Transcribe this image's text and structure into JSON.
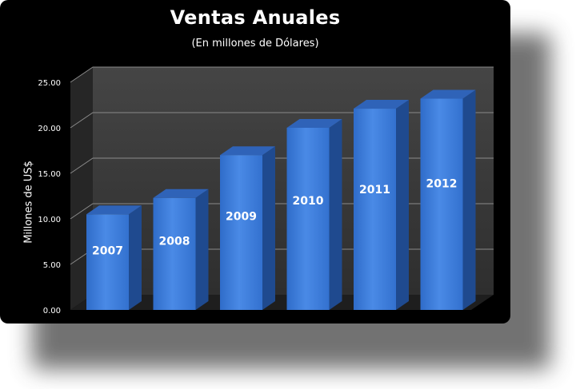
{
  "chart_data": {
    "type": "bar",
    "title": "Ventas Anuales",
    "subtitle": "(En millones de Dólares)",
    "xlabel": "",
    "ylabel": "Millones de US$",
    "categories": [
      "2007",
      "2008",
      "2009",
      "2010",
      "2011",
      "2012"
    ],
    "values": [
      10.5,
      12.3,
      17.0,
      20.0,
      22.1,
      23.2
    ],
    "ylim": [
      0,
      25
    ],
    "yticks": [
      "0.00",
      "5.00",
      "10.00",
      "15.00",
      "20.00",
      "25.00"
    ],
    "grid": true,
    "legend": "none",
    "style": "3d-column",
    "colors": {
      "bar_front": "#3b7ad9",
      "bar_side": "#1f4a8f",
      "bar_top": "#2f63b8",
      "background": "#000000",
      "wall": "#3a3a3a"
    }
  }
}
